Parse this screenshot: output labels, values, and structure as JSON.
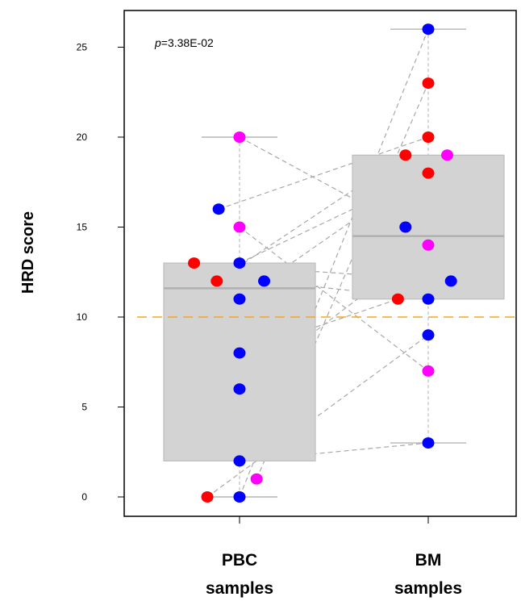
{
  "chart_data": {
    "type": "box",
    "ylabel": "HRD score",
    "ylim": [
      -1,
      26.5
    ],
    "yticks": [
      0,
      5,
      10,
      15,
      20,
      25
    ],
    "annotation": {
      "prefix": "p",
      "text": "=3.38E-02"
    },
    "threshold": {
      "value": 10,
      "color": "#F5A623"
    },
    "categories": [
      {
        "line1": "PBC",
        "line2": "samples"
      },
      {
        "line1": "BM",
        "line2": "samples"
      }
    ],
    "boxes": [
      {
        "category": 0,
        "q1": 2,
        "median": 11.6,
        "q3": 13,
        "whisker_low": 0,
        "whisker_high": 20
      },
      {
        "category": 1,
        "q1": 11,
        "median": 14.5,
        "q3": 19,
        "whisker_low": 3,
        "whisker_high": 26
      }
    ],
    "point_colors": {
      "red": "#FF0000",
      "blue": "#0000FF",
      "magenta": "#FF00FF"
    },
    "points": [
      {
        "category": 0,
        "jitter": -0.17,
        "y": 0,
        "color": "red"
      },
      {
        "category": 0,
        "jitter": 0.0,
        "y": 0,
        "color": "blue"
      },
      {
        "category": 0,
        "jitter": 0.09,
        "y": 1,
        "color": "magenta"
      },
      {
        "category": 0,
        "jitter": 0.0,
        "y": 2,
        "color": "blue"
      },
      {
        "category": 0,
        "jitter": 0.0,
        "y": 6,
        "color": "blue"
      },
      {
        "category": 0,
        "jitter": 0.0,
        "y": 8,
        "color": "blue"
      },
      {
        "category": 0,
        "jitter": 0.0,
        "y": 11,
        "color": "blue"
      },
      {
        "category": 0,
        "jitter": -0.12,
        "y": 12,
        "color": "red"
      },
      {
        "category": 0,
        "jitter": 0.13,
        "y": 12,
        "color": "blue"
      },
      {
        "category": 0,
        "jitter": -0.24,
        "y": 13,
        "color": "red"
      },
      {
        "category": 0,
        "jitter": 0.0,
        "y": 13,
        "color": "blue"
      },
      {
        "category": 0,
        "jitter": 0.0,
        "y": 15,
        "color": "magenta"
      },
      {
        "category": 0,
        "jitter": -0.11,
        "y": 16,
        "color": "blue"
      },
      {
        "category": 0,
        "jitter": 0.0,
        "y": 20,
        "color": "magenta"
      },
      {
        "category": 1,
        "jitter": 0.0,
        "y": 3,
        "color": "blue"
      },
      {
        "category": 1,
        "jitter": 0.0,
        "y": 7,
        "color": "magenta"
      },
      {
        "category": 1,
        "jitter": 0.0,
        "y": 9,
        "color": "blue"
      },
      {
        "category": 1,
        "jitter": -0.16,
        "y": 11,
        "color": "red"
      },
      {
        "category": 1,
        "jitter": 0.0,
        "y": 11,
        "color": "blue"
      },
      {
        "category": 1,
        "jitter": 0.12,
        "y": 12,
        "color": "blue"
      },
      {
        "category": 1,
        "jitter": 0.0,
        "y": 14,
        "color": "magenta"
      },
      {
        "category": 1,
        "jitter": -0.12,
        "y": 15,
        "color": "blue"
      },
      {
        "category": 1,
        "jitter": 0.0,
        "y": 18,
        "color": "red"
      },
      {
        "category": 1,
        "jitter": -0.12,
        "y": 19,
        "color": "red"
      },
      {
        "category": 1,
        "jitter": 0.1,
        "y": 19,
        "color": "magenta"
      },
      {
        "category": 1,
        "jitter": 0.0,
        "y": 20,
        "color": "red"
      },
      {
        "category": 1,
        "jitter": 0.0,
        "y": 23,
        "color": "red"
      },
      {
        "category": 1,
        "jitter": 0.0,
        "y": 26,
        "color": "blue"
      }
    ],
    "pairs": [
      {
        "from": 0,
        "to": 16
      },
      {
        "from": 1,
        "to": 27
      },
      {
        "from": 2,
        "to": 26
      },
      {
        "from": 3,
        "to": 14
      },
      {
        "from": 4,
        "to": 20
      },
      {
        "from": 5,
        "to": 17
      },
      {
        "from": 6,
        "to": 24
      },
      {
        "from": 7,
        "to": 23
      },
      {
        "from": 8,
        "to": 18
      },
      {
        "from": 9,
        "to": 19
      },
      {
        "from": 10,
        "to": 22
      },
      {
        "from": 11,
        "to": 15
      },
      {
        "from": 12,
        "to": 25
      },
      {
        "from": 13,
        "to": 21
      }
    ]
  }
}
